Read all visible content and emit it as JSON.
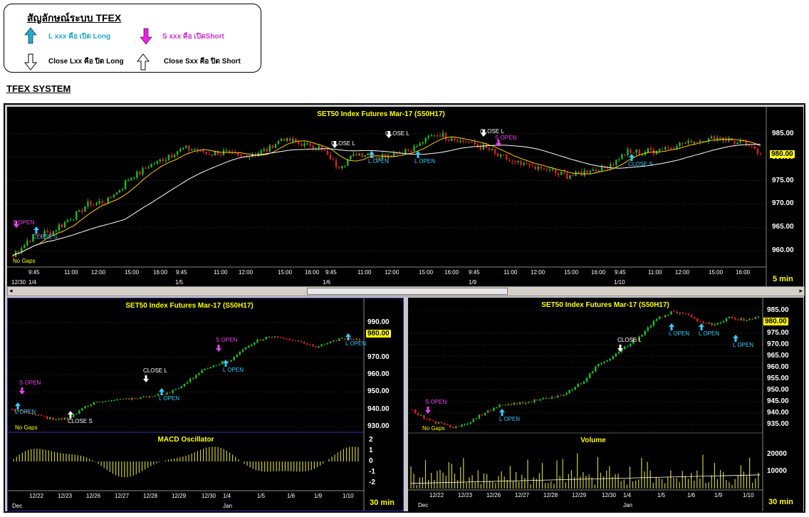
{
  "legend": {
    "title": "สัญลักษณ์ระบบ TFEX",
    "items": [
      {
        "text": "L  xxx  คือ  เปิด  Long",
        "color": "#22aacc"
      },
      {
        "text": "S  xxx  คือ  เปิดShort",
        "color": "#cc33cc"
      },
      {
        "text": "Close  Lxx  คือ  ปิด  Long",
        "color": "#000000"
      },
      {
        "text": "Close  Sxx  คือ  ปิด  Short",
        "color": "#000000"
      }
    ]
  },
  "section_title": "TFEX SYSTEM",
  "main_chart": {
    "title": "SET50  Index  Futures  Mar-17  (S50H17)",
    "y_ticks": [
      "985.00",
      "980.00",
      "975.00",
      "970.00",
      "965.00",
      "960.00"
    ],
    "last_price": "980.00",
    "no_gaps": "No  Gaps",
    "interval": "5  min",
    "time_ticks": [
      "9:45",
      "11:00",
      "12:00",
      "15:00",
      "16:00",
      "9:45",
      "11:00",
      "12:00",
      "15:00",
      "16:00",
      "9:45",
      "11:00",
      "12:00",
      "15:00",
      "16:00",
      "9:45",
      "11:00",
      "12:00",
      "15:00",
      "16:00",
      "9:45",
      "11:00",
      "12:00",
      "15:00",
      "16:00"
    ],
    "date_ticks": [
      "12/30",
      "1/4",
      "1/5",
      "1/6",
      "1/9",
      "1/10"
    ],
    "annotations": [
      "S  OPEN",
      "CLOSE S",
      "CLOSE  L",
      "L  OPEN",
      "CLOSE  L",
      "L  OPEN",
      "CLOSE  L",
      "S  OPEN",
      "CLOSE S"
    ]
  },
  "left_chart": {
    "title": "SET50  Index  Futures  Mar-17  (S50H17)",
    "y_ticks": [
      "990.00",
      "970.00",
      "960.00",
      "950.00",
      "940.00",
      "930.00"
    ],
    "last_price": "980.00",
    "no_gaps": "No  Gaps",
    "annotations": [
      "S  OPEN",
      "L  OPEN",
      "CLOSE S",
      "CLOSE  L",
      "L  OPEN",
      "S  OPEN",
      "L  OPEN",
      "L  OPEN"
    ],
    "osc_title": "MACD  Oscillator",
    "osc_ticks": [
      "2",
      "1",
      "0",
      "-1",
      "-2"
    ],
    "date_ticks": [
      "12/22",
      "12/23",
      "12/26",
      "12/27",
      "12/28",
      "12/29",
      "12/30",
      "1/4",
      "1/5",
      "1/6",
      "1/9",
      "1/10"
    ],
    "month_labels": [
      "Dec",
      "Jan"
    ],
    "interval": "30  min"
  },
  "right_chart": {
    "title": "SET50  Index  Futures  Mar-17  (S50H17)",
    "y_ticks": [
      "985.00",
      "975.00",
      "970.00",
      "965.00",
      "960.00",
      "955.00",
      "950.00",
      "945.00",
      "940.00",
      "935.00"
    ],
    "last_price": "980.00",
    "no_gaps": "No  Gaps",
    "annotations": [
      "S  OPEN",
      "L  OPEN",
      "CLOSE  L",
      "L  OPEN",
      "L  OPEN",
      "L  OPEN"
    ],
    "vol_title": "Volume",
    "vol_ticks": [
      "20000",
      "10000"
    ],
    "date_ticks": [
      "12/22",
      "12/23",
      "12/26",
      "12/27",
      "12/28",
      "12/29",
      "12/30",
      "1/4",
      "1/5",
      "1/6",
      "1/9",
      "1/10"
    ],
    "month_labels": [
      "Dec",
      "Jan"
    ],
    "interval": "30  min"
  },
  "colors": {
    "up": "#22bb22",
    "down": "#dd2222",
    "signal_long": "#33ccff",
    "signal_short": "#ee44ee",
    "ma_fast": "#ffcc00",
    "ma_slow": "#ffffff",
    "label": "#ffff00"
  }
}
